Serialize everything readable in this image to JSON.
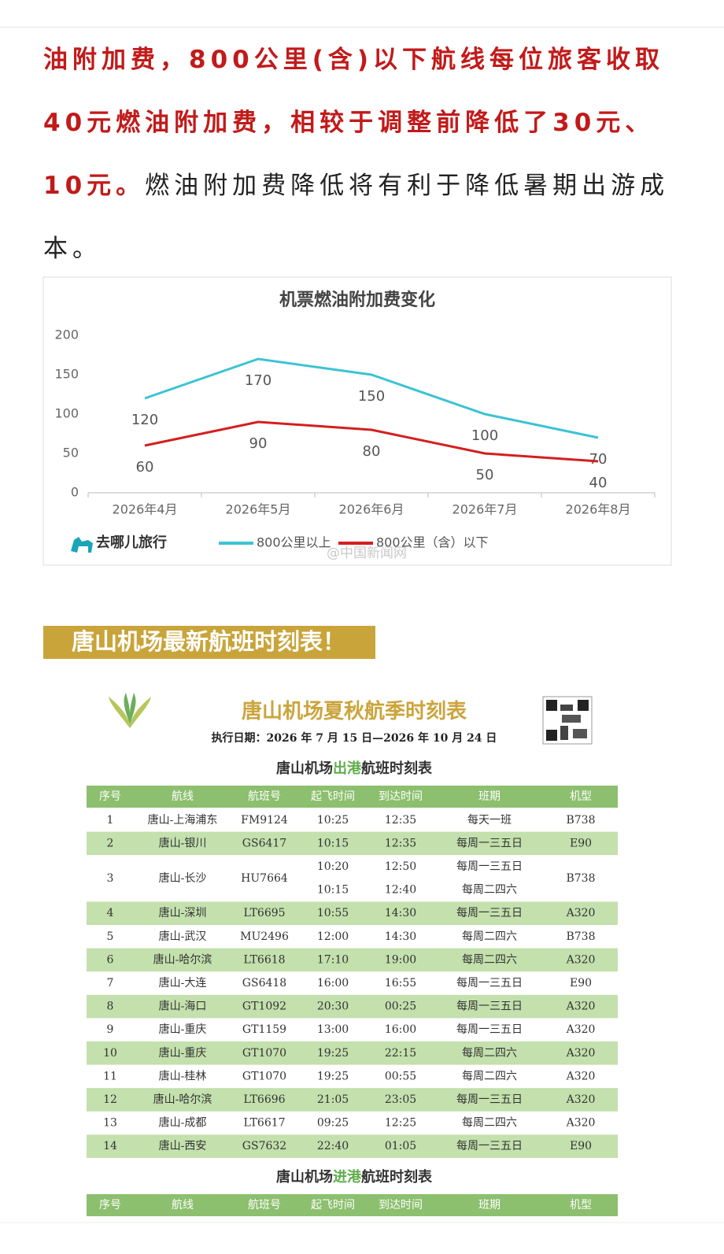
{
  "article": {
    "paragraph": [
      "油附加费，800公里(含)以下航线每位旅客收取40元燃油附加费，相较于调整前降低了30元、10元。",
      "燃油附加费降低将有利于降低暑期出游成本。"
    ]
  },
  "chart_data": {
    "type": "line",
    "title": "机票燃油附加费变化",
    "categories": [
      "2026年4月",
      "2026年5月",
      "2026年6月",
      "2026年7月",
      "2026年8月"
    ],
    "series": [
      {
        "name": "800公里以上",
        "color": "#3cc3d4",
        "values": [
          120,
          170,
          150,
          100,
          70
        ]
      },
      {
        "name": "800公里（含）以下",
        "color": "#d41f1f",
        "values": [
          60,
          90,
          80,
          50,
          40
        ]
      }
    ],
    "ylim": [
      0,
      200
    ],
    "yticks": [
      0,
      50,
      100,
      150,
      200
    ],
    "grid": false,
    "legend": "bottom",
    "brand": "去哪儿旅行",
    "watermark": "@中国新闻网"
  },
  "section_title": "唐山机场最新航班时刻表！",
  "schedule": {
    "title": "唐山机场夏秋航季时刻表",
    "date": "执行日期：2026 年 7 月 15 日—2026 年 10 月 24 日",
    "departures": {
      "title_parts": [
        "唐山机场",
        "出港",
        "航班时刻表"
      ],
      "columns": [
        "序号",
        "航线",
        "航班号",
        "起飞时间",
        "到达时间",
        "班期",
        "机型"
      ],
      "rows": [
        [
          1,
          "唐山-上海浦东",
          "FM9124",
          "10:25",
          "12:35",
          "每天一班",
          "B738"
        ],
        [
          2,
          "唐山-银川",
          "GS6417",
          "10:15",
          "12:35",
          "每周一三五日",
          "E90"
        ],
        [
          3,
          "唐山-长沙",
          "HU7664",
          [
            "10:20",
            "10:15"
          ],
          [
            "12:50",
            "12:40"
          ],
          [
            "每周一三五日",
            "每周二四六"
          ],
          "B738"
        ],
        [
          4,
          "唐山-深圳",
          "LT6695",
          "10:55",
          "14:30",
          "每周一三五日",
          "A320"
        ],
        [
          5,
          "唐山-武汉",
          "MU2496",
          "12:00",
          "14:30",
          "每周二四六",
          "B738"
        ],
        [
          6,
          "唐山-哈尔滨",
          "LT6618",
          "17:10",
          "19:00",
          "每周二四六",
          "A320"
        ],
        [
          7,
          "唐山-大连",
          "GS6418",
          "16:00",
          "16:55",
          "每周一三五日",
          "E90"
        ],
        [
          8,
          "唐山-海口",
          "GT1092",
          "20:30",
          "00:25",
          "每周一三五日",
          "A320"
        ],
        [
          9,
          "唐山-重庆",
          "GT1159",
          "13:00",
          "16:00",
          "每周一三五日",
          "A320"
        ],
        [
          10,
          "唐山-重庆",
          "GT1070",
          "19:25",
          "22:15",
          "每周二四六",
          "A320"
        ],
        [
          11,
          "唐山-桂林",
          "GT1070",
          "19:25",
          "00:55",
          "每周二四六",
          "A320"
        ],
        [
          12,
          "唐山-哈尔滨",
          "LT6696",
          "21:05",
          "23:05",
          "每周一三五日",
          "A320"
        ],
        [
          13,
          "唐山-成都",
          "LT6617",
          "09:25",
          "12:25",
          "每周二四六",
          "A320"
        ],
        [
          14,
          "唐山-西安",
          "GS7632",
          "22:40",
          "01:05",
          "每周一三五日",
          "E90"
        ]
      ]
    },
    "arrivals": {
      "title_parts": [
        "唐山机场",
        "进港",
        "航班时刻表"
      ],
      "columns": [
        "序号",
        "航线",
        "航班号",
        "起飞时间",
        "到达时间",
        "班期",
        "机型"
      ]
    }
  }
}
